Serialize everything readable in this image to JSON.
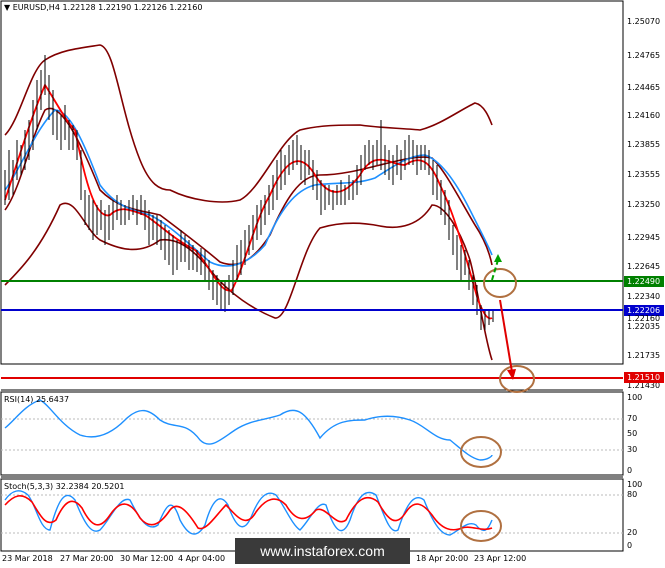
{
  "main_chart": {
    "title": "EURUSD,H4  1.22128 1.22190 1.22126 1.22160",
    "price_labels": [
      "1.25070",
      "1.24765",
      "1.24465",
      "1.24160",
      "1.23855",
      "1.23555",
      "1.23250",
      "1.22945",
      "1.22645",
      "1.22340",
      "1.22035",
      "1.21735",
      "1.21430"
    ],
    "support_level": {
      "label": "1.22490",
      "color": "#008000"
    },
    "current_price": {
      "label": "1.22206",
      "secondary": "1.22160",
      "color": "#0000cd"
    },
    "target_level": {
      "label": "1.21510",
      "color": "#e00000"
    }
  },
  "rsi_panel": {
    "title": "RSI(14) 25.6437",
    "scale_labels": [
      "100",
      "70",
      "50",
      "30",
      "0"
    ]
  },
  "stoch_panel": {
    "title": "Stoch(5,3,3) 32.2384 20.5201",
    "scale_labels": [
      "100",
      "80",
      "20",
      "0"
    ]
  },
  "time_axis": [
    "23 Mar 2018",
    "27 Mar 20:00",
    "30 Mar 12:00",
    "4 Apr 04:00",
    "6",
    "18 Apr 20:00",
    "23 Apr 12:00"
  ],
  "watermark": "www.instaforex.com",
  "colors": {
    "bollinger": "#800000",
    "ma_fast": "#ff0000",
    "ma_slow": "#1e90ff",
    "candles": "#000000",
    "rsi_line": "#1e90ff",
    "stoch_main": "#1e90ff",
    "stoch_signal": "#ff0000",
    "highlight_circle": "#b07040"
  }
}
